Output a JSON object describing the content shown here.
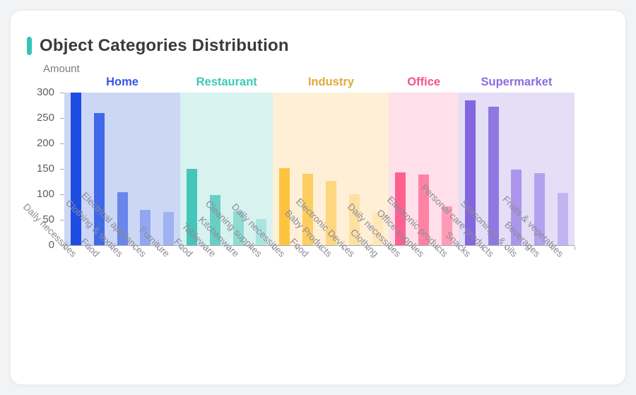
{
  "card": {
    "title": "Object Categories Distribution",
    "accent_color": "#35c2b8"
  },
  "chart_data": {
    "type": "bar",
    "title": "Object Categories Distribution",
    "xlabel": "",
    "ylabel": "Amount",
    "ylim": [
      0,
      300
    ],
    "yticks": [
      0,
      50,
      100,
      150,
      200,
      250,
      300
    ],
    "grid": false,
    "legend_position": "none",
    "axis_color": "#aaabb0",
    "groups": [
      {
        "name": "Home",
        "label_color": "#3556e8",
        "band_color": "#ccd7f5",
        "categories": [
          "Daily necessities",
          "Food",
          "Clothing & textiles",
          "Electrical appliances",
          "Furniture"
        ],
        "values": [
          300,
          260,
          104,
          70,
          65
        ],
        "bar_colors": [
          "#1d4ce4",
          "#4069e8",
          "#6886ec",
          "#90a7f0",
          "#9fb2f2"
        ]
      },
      {
        "name": "Restaurant",
        "label_color": "#3ec8b6",
        "band_color": "#d8f2ef",
        "categories": [
          "Food",
          "Tableware",
          "Kitchenware",
          "Cleaning supplies"
        ],
        "values": [
          150,
          98,
          66,
          52
        ],
        "bar_colors": [
          "#45c6bb",
          "#69cfc6",
          "#8edbd4",
          "#abe4df"
        ]
      },
      {
        "name": "Industry",
        "label_color": "#e2a93c",
        "band_color": "#fdf0d7",
        "categories": [
          "Daily necessities",
          "Food",
          "Baby Products",
          "Electronic Devices",
          "Clothing"
        ],
        "values": [
          151,
          140,
          127,
          100,
          64
        ],
        "bar_colors": [
          "#fec33e",
          "#fecd60",
          "#fed67f",
          "#fee0a1",
          "#fee7b8"
        ]
      },
      {
        "name": "Office",
        "label_color": "#f75189",
        "band_color": "#ffdfe9",
        "categories": [
          "Daily necessities",
          "Office supplies",
          "Electronic products"
        ],
        "values": [
          143,
          139,
          76
        ],
        "bar_colors": [
          "#fc6190",
          "#fd83a5",
          "#fe9cb8"
        ]
      },
      {
        "name": "Supermarket",
        "label_color": "#8a6ce2",
        "band_color": "#e4def7",
        "categories": [
          "Snacks",
          "Personal care products",
          "Seasonings & oils",
          "Beverages",
          "Fruits & vegetables"
        ],
        "values": [
          285,
          272,
          149,
          141,
          103
        ],
        "bar_colors": [
          "#8366e0",
          "#9177e4",
          "#ab96ec",
          "#b4a1ee",
          "#c2b3f1"
        ]
      }
    ]
  }
}
